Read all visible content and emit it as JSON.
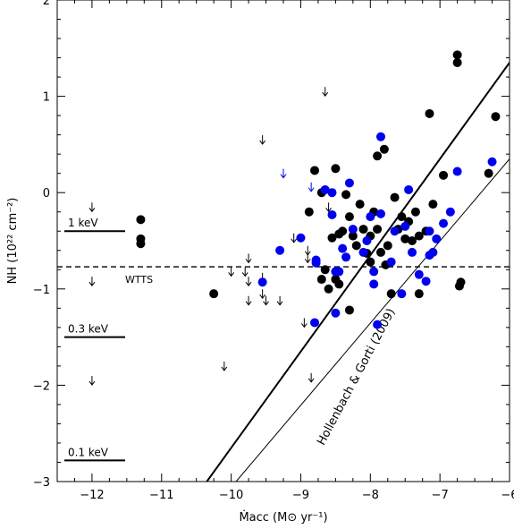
{
  "chart_data": {
    "type": "scatter",
    "title": "",
    "xlabel": "Ṁacc (M⊙ yr⁻¹)",
    "ylabel": "NH (10²² cm⁻²)",
    "xlim": [
      -12.5,
      -6
    ],
    "ylim": [
      -3,
      2
    ],
    "x_ticks": [
      -12,
      -11,
      -10,
      -9,
      -8,
      -7,
      -6
    ],
    "y_ticks": [
      -3,
      -2,
      -1,
      0,
      1,
      2
    ],
    "x_tick_labels": [
      "−12",
      "−11",
      "−10",
      "−9",
      "−8",
      "−7",
      "−6"
    ],
    "y_tick_labels": [
      "−3",
      "−2",
      "−1",
      "0",
      "1",
      "2"
    ],
    "grid": false,
    "colors": {
      "black": "#000000",
      "blue": "#0000ee"
    },
    "series": [
      {
        "color": "black",
        "marker": "filled-circle",
        "points": [
          [
            -11.3,
            -0.28
          ],
          [
            -11.3,
            -0.48
          ],
          [
            -11.3,
            -0.53
          ],
          [
            -10.25,
            -1.05
          ],
          [
            -8.88,
            -0.2
          ],
          [
            -8.8,
            0.23
          ],
          [
            -8.7,
            0.0
          ],
          [
            -8.65,
            -0.8
          ],
          [
            -8.7,
            -0.9
          ],
          [
            -8.6,
            -1.0
          ],
          [
            -8.55,
            -0.47
          ],
          [
            -8.5,
            0.25
          ],
          [
            -8.5,
            -0.9
          ],
          [
            -8.45,
            -0.43
          ],
          [
            -8.45,
            -0.95
          ],
          [
            -8.4,
            -0.4
          ],
          [
            -8.35,
            -0.02
          ],
          [
            -8.3,
            -1.22
          ],
          [
            -8.3,
            -0.25
          ],
          [
            -8.25,
            -0.45
          ],
          [
            -8.2,
            -0.55
          ],
          [
            -8.15,
            -0.12
          ],
          [
            -8.1,
            -0.38
          ],
          [
            -8.05,
            -0.63
          ],
          [
            -8.0,
            -0.45
          ],
          [
            -7.95,
            -0.2
          ],
          [
            -7.9,
            -0.38
          ],
          [
            -7.9,
            0.38
          ],
          [
            -7.85,
            -0.62
          ],
          [
            -7.8,
            0.45
          ],
          [
            -7.75,
            -0.55
          ],
          [
            -7.7,
            -1.05
          ],
          [
            -7.65,
            -0.05
          ],
          [
            -7.6,
            -0.38
          ],
          [
            -7.55,
            -0.25
          ],
          [
            -7.5,
            -0.48
          ],
          [
            -7.45,
            -0.3
          ],
          [
            -7.4,
            -0.5
          ],
          [
            -7.35,
            -0.2
          ],
          [
            -7.3,
            -0.45
          ],
          [
            -7.3,
            -1.05
          ],
          [
            -7.2,
            -0.4
          ],
          [
            -7.15,
            0.82
          ],
          [
            -7.1,
            -0.12
          ],
          [
            -6.95,
            0.18
          ],
          [
            -6.75,
            1.43
          ],
          [
            -6.75,
            1.35
          ],
          [
            -6.72,
            -0.97
          ],
          [
            -6.7,
            -0.93
          ],
          [
            -6.3,
            0.2
          ],
          [
            -6.2,
            0.79
          ],
          [
            -8.0,
            -0.72
          ],
          [
            -7.78,
            -0.75
          ]
        ]
      },
      {
        "color": "blue",
        "marker": "filled-circle",
        "points": [
          [
            -9.55,
            -0.93
          ],
          [
            -9.3,
            -0.6
          ],
          [
            -9.0,
            -0.47
          ],
          [
            -8.78,
            -0.7
          ],
          [
            -8.78,
            -0.73
          ],
          [
            -8.8,
            -1.35
          ],
          [
            -8.65,
            0.03
          ],
          [
            -8.55,
            -0.23
          ],
          [
            -8.55,
            0.0
          ],
          [
            -8.5,
            -0.82
          ],
          [
            -8.5,
            -1.25
          ],
          [
            -8.45,
            -0.82
          ],
          [
            -8.4,
            -0.58
          ],
          [
            -8.35,
            -0.67
          ],
          [
            -8.3,
            0.1
          ],
          [
            -8.25,
            -0.38
          ],
          [
            -8.1,
            -0.62
          ],
          [
            -8.05,
            -0.5
          ],
          [
            -8.0,
            -0.25
          ],
          [
            -7.95,
            -0.95
          ],
          [
            -7.95,
            -0.82
          ],
          [
            -7.9,
            -1.37
          ],
          [
            -7.85,
            0.58
          ],
          [
            -7.85,
            -0.22
          ],
          [
            -7.7,
            -0.72
          ],
          [
            -7.65,
            -0.4
          ],
          [
            -7.55,
            -1.05
          ],
          [
            -7.5,
            -0.35
          ],
          [
            -7.45,
            0.03
          ],
          [
            -7.4,
            -0.62
          ],
          [
            -7.3,
            -0.85
          ],
          [
            -7.2,
            -0.92
          ],
          [
            -7.15,
            -0.65
          ],
          [
            -7.15,
            -0.4
          ],
          [
            -7.1,
            -0.62
          ],
          [
            -7.05,
            -0.48
          ],
          [
            -6.95,
            -0.32
          ],
          [
            -6.85,
            -0.2
          ],
          [
            -6.75,
            0.22
          ],
          [
            -6.25,
            0.32
          ]
        ]
      }
    ],
    "upper_limits": {
      "marker": "down-arrow",
      "black": [
        [
          -12.0,
          -0.15
        ],
        [
          -12.0,
          -0.92
        ],
        [
          -12.0,
          -1.95
        ],
        [
          -10.1,
          -1.8
        ],
        [
          -10.0,
          -0.82
        ],
        [
          -9.8,
          -0.82
        ],
        [
          -9.75,
          -0.68
        ],
        [
          -9.75,
          -0.92
        ],
        [
          -9.75,
          -1.12
        ],
        [
          -9.55,
          0.55
        ],
        [
          -9.55,
          -0.88
        ],
        [
          -9.55,
          -1.05
        ],
        [
          -9.5,
          -1.12
        ],
        [
          -9.3,
          -1.12
        ],
        [
          -9.1,
          -0.47
        ],
        [
          -8.9,
          -0.6
        ],
        [
          -8.9,
          -0.68
        ],
        [
          -8.95,
          -1.35
        ],
        [
          -8.85,
          -1.92
        ],
        [
          -8.65,
          1.05
        ],
        [
          -8.6,
          -0.15
        ]
      ],
      "blue": [
        [
          -9.25,
          0.2
        ],
        [
          -8.85,
          0.06
        ]
      ]
    },
    "lines": [
      {
        "kind": "dashed",
        "y": -0.77,
        "x_range": [
          -12.5,
          -6
        ]
      },
      {
        "kind": "solid-thick",
        "from": [
          -10.35,
          -3.0
        ],
        "to": [
          -6.0,
          1.35
        ]
      },
      {
        "kind": "solid-thin",
        "from": [
          -9.93,
          -3.0
        ],
        "to": [
          -6.0,
          0.35
        ]
      }
    ],
    "reference_levels": [
      {
        "label": "1 keV",
        "y": -0.4
      },
      {
        "label": "0.3 keV",
        "y": -1.5
      },
      {
        "label": "0.1 keV",
        "y": -2.78
      }
    ],
    "annotations": [
      {
        "text": "WTTS"
      },
      {
        "text": "Hollenbach & Gorti (2009)"
      }
    ]
  }
}
